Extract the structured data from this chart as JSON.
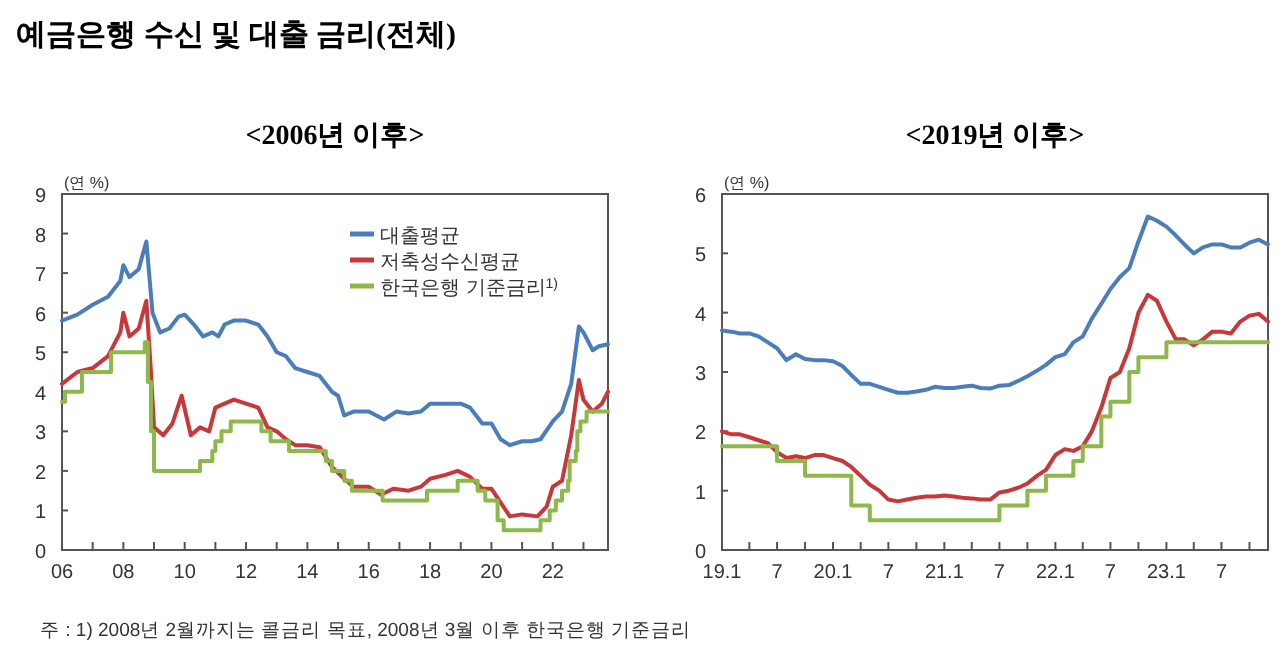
{
  "chart_data": [
    {
      "type": "line",
      "title": "예금은행 수신 및 대출 금리(전체)",
      "subtitle": "<2006년 이후>",
      "ylabel": "(연 %)",
      "annotations": [
        "주 : 1) 2008년 2월까지는 콜금리 목표, 2008년 3월 이후 한국은행 기준금리"
      ],
      "legend": "top right",
      "grid": false,
      "xlim": [
        2006,
        2023.8
      ],
      "ylim": [
        0,
        9
      ],
      "yticks": [
        0,
        1,
        2,
        3,
        4,
        5,
        6,
        7,
        8,
        9
      ],
      "xticks": [
        {
          "value": 2006,
          "label": "06"
        },
        {
          "value": 2007,
          "label": null
        },
        {
          "value": 2008,
          "label": "08"
        },
        {
          "value": 2009,
          "label": null
        },
        {
          "value": 2010,
          "label": "10"
        },
        {
          "value": 2011,
          "label": null
        },
        {
          "value": 2012,
          "label": "12"
        },
        {
          "value": 2013,
          "label": null
        },
        {
          "value": 2014,
          "label": "14"
        },
        {
          "value": 2015,
          "label": null
        },
        {
          "value": 2016,
          "label": "16"
        },
        {
          "value": 2017,
          "label": null
        },
        {
          "value": 2018,
          "label": "18"
        },
        {
          "value": 2019,
          "label": null
        },
        {
          "value": 2020,
          "label": "20"
        },
        {
          "value": 2021,
          "label": null
        },
        {
          "value": 2022,
          "label": "22"
        },
        {
          "value": 2023,
          "label": null
        }
      ],
      "series": [
        {
          "name": "대출평균",
          "color": "#4a7ebb",
          "x": [
            2006,
            2006.5,
            2007,
            2007.5,
            2007.9,
            2008,
            2008.2,
            2008.5,
            2008.75,
            2008.95,
            2009.2,
            2009.5,
            2009.8,
            2010,
            2010.3,
            2010.6,
            2010.9,
            2011.1,
            2011.3,
            2011.6,
            2012,
            2012.4,
            2012.7,
            2013,
            2013.3,
            2013.6,
            2014,
            2014.4,
            2014.8,
            2015,
            2015.2,
            2015.5,
            2016,
            2016.5,
            2016.9,
            2017.3,
            2017.7,
            2018,
            2018.5,
            2019,
            2019.3,
            2019.7,
            2020,
            2020.3,
            2020.6,
            2021,
            2021.3,
            2021.6,
            2022,
            2022.3,
            2022.6,
            2022.85,
            2023,
            2023.3,
            2023.5,
            2023.8
          ],
          "values": [
            5.8,
            5.95,
            6.2,
            6.4,
            6.8,
            7.2,
            6.9,
            7.1,
            7.8,
            6,
            5.5,
            5.6,
            5.9,
            5.95,
            5.7,
            5.4,
            5.5,
            5.4,
            5.7,
            5.8,
            5.8,
            5.7,
            5.4,
            5,
            4.9,
            4.6,
            4.5,
            4.4,
            4,
            3.9,
            3.4,
            3.5,
            3.5,
            3.3,
            3.5,
            3.45,
            3.5,
            3.7,
            3.7,
            3.7,
            3.6,
            3.2,
            3.2,
            2.8,
            2.65,
            2.75,
            2.75,
            2.8,
            3.25,
            3.5,
            4.2,
            5.65,
            5.5,
            5.05,
            5.15,
            5.2
          ]
        },
        {
          "name": "저축성수신평균",
          "color": "#c8373a",
          "x": [
            2006,
            2006.5,
            2007,
            2007.5,
            2007.9,
            2008,
            2008.2,
            2008.5,
            2008.75,
            2008.9,
            2009,
            2009.3,
            2009.6,
            2009.9,
            2010.2,
            2010.5,
            2010.8,
            2011,
            2011.3,
            2011.6,
            2012,
            2012.4,
            2012.7,
            2013,
            2013.3,
            2013.6,
            2014,
            2014.4,
            2014.8,
            2015.2,
            2015.5,
            2016,
            2016.4,
            2016.8,
            2017.3,
            2017.7,
            2018,
            2018.5,
            2018.9,
            2019.3,
            2019.7,
            2020,
            2020.3,
            2020.6,
            2021,
            2021.5,
            2021.8,
            2022,
            2022.3,
            2022.6,
            2022.85,
            2023,
            2023.3,
            2023.6,
            2023.8
          ],
          "values": [
            4.2,
            4.5,
            4.6,
            4.9,
            5.5,
            6,
            5.4,
            5.6,
            6.3,
            4.5,
            3.1,
            2.9,
            3.2,
            3.9,
            2.9,
            3.1,
            3,
            3.6,
            3.7,
            3.8,
            3.7,
            3.6,
            3.1,
            3,
            2.8,
            2.65,
            2.65,
            2.6,
            2.1,
            1.8,
            1.6,
            1.6,
            1.4,
            1.55,
            1.5,
            1.6,
            1.8,
            1.9,
            2,
            1.85,
            1.55,
            1.55,
            1.2,
            0.85,
            0.9,
            0.85,
            1.1,
            1.6,
            1.75,
            2.9,
            4.3,
            3.8,
            3.5,
            3.7,
            4
          ]
        },
        {
          "name": "한국은행 기준금리$^{1)}$",
          "type": "step",
          "color": "#8db94a",
          "x": [
            2006,
            2006.1,
            2006.65,
            2007.6,
            2008.7,
            2008.8,
            2008.9,
            2009,
            2010.5,
            2010.9,
            2011,
            2011.2,
            2011.5,
            2012.5,
            2012.8,
            2013.4,
            2014.6,
            2014.8,
            2015.2,
            2015.45,
            2016.45,
            2017.9,
            2018.9,
            2019.55,
            2019.8,
            2020.2,
            2020.4,
            2021.6,
            2021.9,
            2022.1,
            2022.3,
            2022.5,
            2022.55,
            2022.75,
            2022.8,
            2022.9,
            2023.1,
            2023.8
          ],
          "values": [
            3.75,
            4,
            4.5,
            5,
            5.25,
            4.25,
            3,
            2,
            2.25,
            2.5,
            2.75,
            3,
            3.25,
            3,
            2.75,
            2.5,
            2.25,
            2,
            1.75,
            1.5,
            1.25,
            1.5,
            1.75,
            1.5,
            1.25,
            0.75,
            0.5,
            0.75,
            1,
            1.25,
            1.5,
            1.75,
            2.25,
            2.5,
            3,
            3.25,
            3.5,
            3.5
          ]
        }
      ]
    },
    {
      "type": "line",
      "title": "<2019년 이후>",
      "ylabel": "(연 %)",
      "grid": false,
      "xlim": [
        "2019-01",
        "2023-12"
      ],
      "ylim": [
        0,
        6
      ],
      "yticks": [
        0,
        1,
        2,
        3,
        4,
        5,
        6
      ],
      "xticks": [
        {
          "value": "2019-01",
          "label": "19.1"
        },
        {
          "value": "2019-04",
          "label": null
        },
        {
          "value": "2019-07",
          "label": "7"
        },
        {
          "value": "2019-10",
          "label": null
        },
        {
          "value": "2020-01",
          "label": "20.1"
        },
        {
          "value": "2020-04",
          "label": null
        },
        {
          "value": "2020-07",
          "label": "7"
        },
        {
          "value": "2020-10",
          "label": null
        },
        {
          "value": "2021-01",
          "label": "21.1"
        },
        {
          "value": "2021-04",
          "label": null
        },
        {
          "value": "2021-07",
          "label": "7"
        },
        {
          "value": "2021-10",
          "label": null
        },
        {
          "value": "2022-01",
          "label": "22.1"
        },
        {
          "value": "2022-04",
          "label": null
        },
        {
          "value": "2022-07",
          "label": "7"
        },
        {
          "value": "2022-10",
          "label": null
        },
        {
          "value": "2023-01",
          "label": "23.1"
        },
        {
          "value": "2023-04",
          "label": null
        },
        {
          "value": "2023-07",
          "label": "7"
        },
        {
          "value": "2023-10",
          "label": null
        }
      ],
      "x": [
        "2019-01",
        "2019-02",
        "2019-03",
        "2019-04",
        "2019-05",
        "2019-06",
        "2019-07",
        "2019-08",
        "2019-09",
        "2019-10",
        "2019-11",
        "2019-12",
        "2020-01",
        "2020-02",
        "2020-03",
        "2020-04",
        "2020-05",
        "2020-06",
        "2020-07",
        "2020-08",
        "2020-09",
        "2020-10",
        "2020-11",
        "2020-12",
        "2021-01",
        "2021-02",
        "2021-03",
        "2021-04",
        "2021-05",
        "2021-06",
        "2021-07",
        "2021-08",
        "2021-09",
        "2021-10",
        "2021-11",
        "2021-12",
        "2022-01",
        "2022-02",
        "2022-03",
        "2022-04",
        "2022-05",
        "2022-06",
        "2022-07",
        "2022-08",
        "2022-09",
        "2022-10",
        "2022-11",
        "2022-12",
        "2023-01",
        "2023-02",
        "2023-03",
        "2023-04",
        "2023-05",
        "2023-06",
        "2023-07",
        "2023-08",
        "2023-09",
        "2023-10",
        "2023-11",
        "2023-12"
      ],
      "series": [
        {
          "color": "#4a7ebb",
          "values": [
            3.7,
            3.68,
            3.65,
            3.65,
            3.6,
            3.5,
            3.4,
            3.2,
            3.3,
            3.22,
            3.2,
            3.2,
            3.18,
            3.1,
            2.95,
            2.8,
            2.8,
            2.75,
            2.7,
            2.65,
            2.65,
            2.67,
            2.7,
            2.75,
            2.73,
            2.73,
            2.75,
            2.77,
            2.73,
            2.72,
            2.77,
            2.78,
            2.85,
            2.93,
            3.02,
            3.12,
            3.25,
            3.3,
            3.5,
            3.6,
            3.9,
            4.15,
            4.4,
            4.6,
            4.75,
            5.2,
            5.62,
            5.55,
            5.45,
            5.3,
            5.15,
            5,
            5.1,
            5.15,
            5.15,
            5.1,
            5.1,
            5.18,
            5.23,
            5.15
          ]
        },
        {
          "color": "#c8373a",
          "values": [
            2,
            1.95,
            1.95,
            1.9,
            1.85,
            1.8,
            1.65,
            1.55,
            1.58,
            1.55,
            1.6,
            1.6,
            1.55,
            1.5,
            1.4,
            1.25,
            1.1,
            1,
            0.85,
            0.82,
            0.85,
            0.88,
            0.9,
            0.9,
            0.92,
            0.9,
            0.88,
            0.87,
            0.85,
            0.85,
            0.97,
            1,
            1.05,
            1.12,
            1.25,
            1.35,
            1.6,
            1.7,
            1.67,
            1.75,
            2,
            2.4,
            2.9,
            3,
            3.4,
            4,
            4.3,
            4.2,
            3.85,
            3.55,
            3.55,
            3.45,
            3.55,
            3.68,
            3.68,
            3.65,
            3.85,
            3.95,
            3.98,
            3.85
          ]
        },
        {
          "type": "step",
          "color": "#8db94a",
          "values": [
            1.75,
            1.75,
            1.75,
            1.75,
            1.75,
            1.75,
            1.5,
            1.5,
            1.5,
            1.25,
            1.25,
            1.25,
            1.25,
            1.25,
            0.75,
            0.75,
            0.5,
            0.5,
            0.5,
            0.5,
            0.5,
            0.5,
            0.5,
            0.5,
            0.5,
            0.5,
            0.5,
            0.5,
            0.5,
            0.5,
            0.75,
            0.75,
            0.75,
            1,
            1,
            1.25,
            1.25,
            1.25,
            1.5,
            1.75,
            1.75,
            2.25,
            2.5,
            2.5,
            3,
            3.25,
            3.25,
            3.25,
            3.5,
            3.5,
            3.5,
            3.5,
            3.5,
            3.5,
            3.5,
            3.5,
            3.5,
            3.5,
            3.5,
            3.5
          ]
        }
      ]
    }
  ]
}
